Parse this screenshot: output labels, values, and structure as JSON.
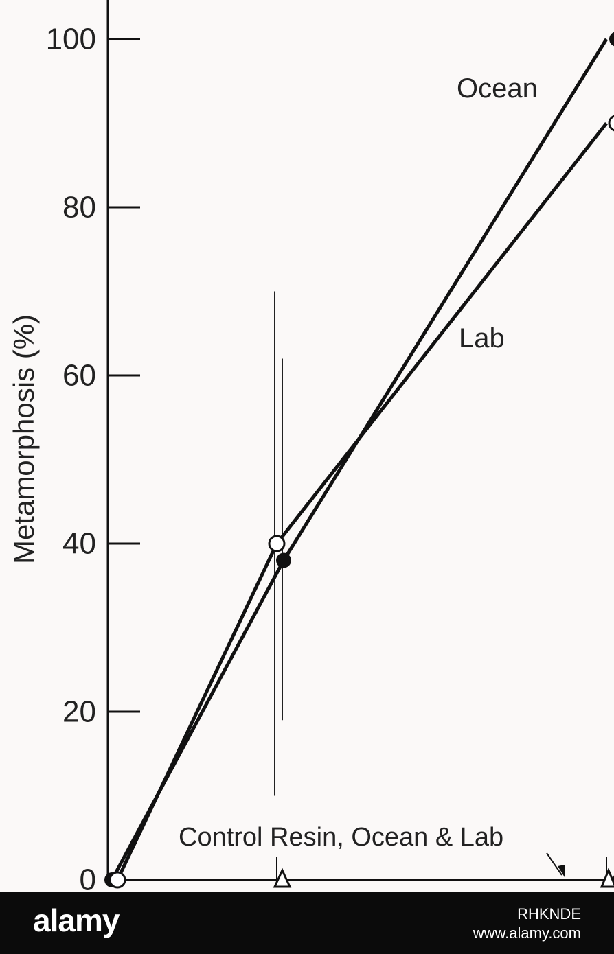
{
  "chart_data": {
    "type": "line",
    "title": "",
    "xlabel": "",
    "ylabel": "Metamorphosis (%)",
    "ylim": [
      0,
      100
    ],
    "yticks": [
      0,
      20,
      40,
      60,
      80,
      100
    ],
    "x": [
      0,
      1,
      3
    ],
    "series": [
      {
        "name": "Ocean",
        "marker": "filled-circle",
        "values": [
          0,
          38,
          100
        ]
      },
      {
        "name": "Lab",
        "marker": "open-circle",
        "values": [
          0,
          40,
          90
        ]
      },
      {
        "name": "Control Resin, Ocean & Lab",
        "marker": "open-triangle",
        "values": [
          0,
          0,
          0
        ]
      }
    ],
    "error_bars": [
      {
        "series": "Lab",
        "x": 1,
        "low": 10,
        "high": 70
      },
      {
        "series": "Ocean",
        "x": 1,
        "low": 19,
        "high": 62
      }
    ],
    "grid": false,
    "legend": "inline labels"
  },
  "watermark": {
    "brand": "alamy",
    "image_id": "RHKNDE",
    "url": "www.alamy.com"
  },
  "colors": {
    "background": "#fbf9f8",
    "line": "#111111",
    "footer": "#0b0b0b"
  }
}
